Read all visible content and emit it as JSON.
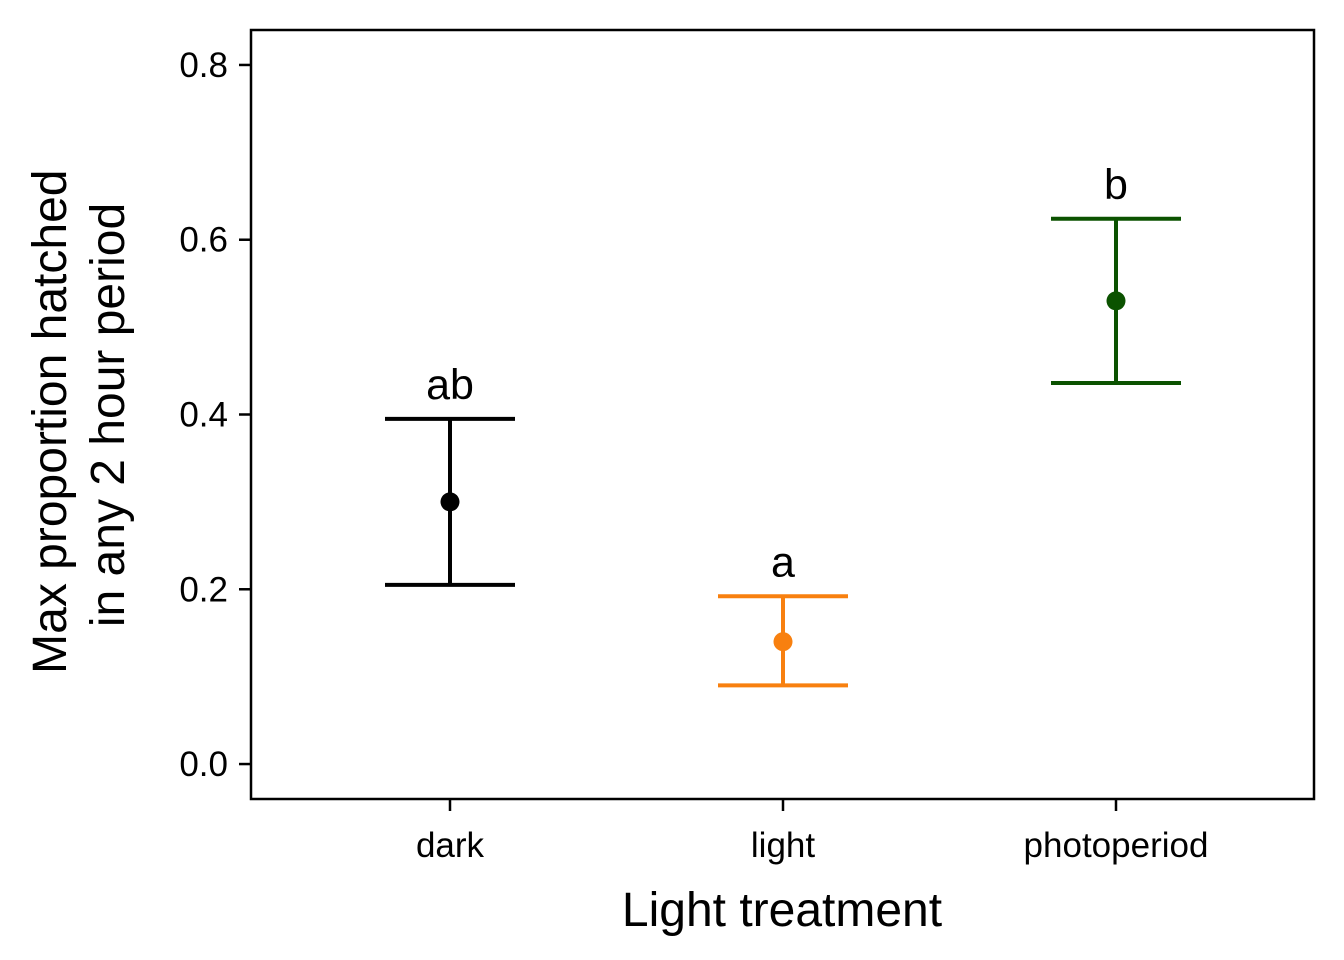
{
  "chart_data": {
    "type": "scatter",
    "subtype": "point-with-error-bars",
    "xlabel": "Light treatment",
    "ylabel_lines": [
      "Max proportion hatched",
      "in any 2 hour period"
    ],
    "ylim": [
      -0.04,
      0.84
    ],
    "yticks": [
      0.0,
      0.2,
      0.4,
      0.6,
      0.8
    ],
    "ytick_labels": [
      "0.0",
      "0.2",
      "0.4",
      "0.6",
      "0.8"
    ],
    "categories": [
      "dark",
      "light",
      "photoperiod"
    ],
    "points": [
      {
        "category": "dark",
        "value": 0.3,
        "lower": 0.205,
        "upper": 0.395,
        "label": "ab",
        "color": "#000000"
      },
      {
        "category": "light",
        "value": 0.14,
        "lower": 0.09,
        "upper": 0.192,
        "label": "a",
        "color": "#F8800F"
      },
      {
        "category": "photoperiod",
        "value": 0.53,
        "lower": 0.436,
        "upper": 0.624,
        "label": "b",
        "color": "#0B5200"
      }
    ],
    "grid": false,
    "legend": "none"
  }
}
